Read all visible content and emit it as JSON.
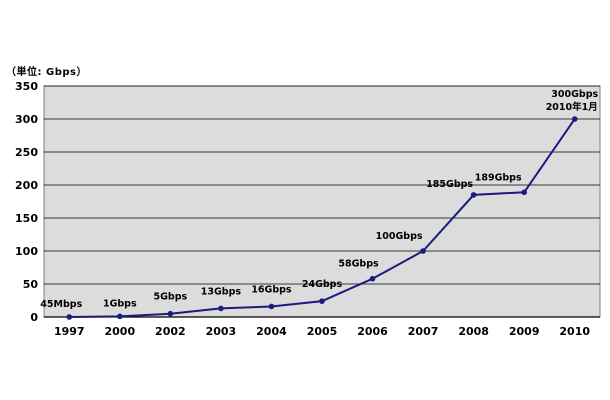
{
  "chart_data": {
    "type": "line",
    "unit_label": "（単位: Gbps）",
    "categories": [
      "1997",
      "2000",
      "2002",
      "2003",
      "2004",
      "2005",
      "2006",
      "2007",
      "2008",
      "2009",
      "2010"
    ],
    "values": [
      0.045,
      1,
      5,
      13,
      16,
      24,
      58,
      100,
      185,
      189,
      300
    ],
    "point_labels": [
      "45Mbps",
      "1Gbps",
      "5Gbps",
      "13Gbps",
      "16Gbps",
      "24Gbps",
      "58Gbps",
      "100Gbps",
      "185Gbps",
      "189Gbps",
      "300Gbps"
    ],
    "last_point_note": "2010年1月",
    "yticks": [
      "0",
      "50",
      "100",
      "150",
      "200",
      "250",
      "300",
      "350"
    ],
    "ylim": [
      0,
      350
    ],
    "grid": true,
    "colors": {
      "line": "#1a1a80",
      "plot_bg": "#dcdcdc",
      "grid": "#000000"
    }
  }
}
